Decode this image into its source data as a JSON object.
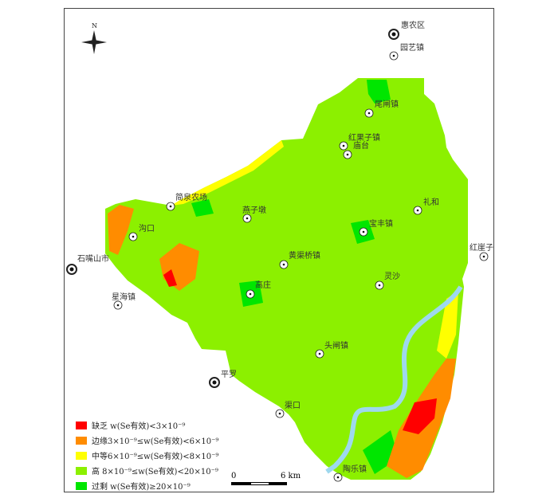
{
  "north_label": "N",
  "colors": {
    "deficient": "#ff0000",
    "marginal": "#ff8c00",
    "medium": "#ffff00",
    "high": "#8cf000",
    "excess": "#00e600",
    "river": "#9ed8ee"
  },
  "places": [
    {
      "name": "惠农区",
      "type": "district"
    },
    {
      "name": "园艺镇",
      "type": "town"
    },
    {
      "name": "尾闸镇",
      "type": "town"
    },
    {
      "name": "红果子镇",
      "type": "town"
    },
    {
      "name": "庙台",
      "type": "town"
    },
    {
      "name": "简泉农场",
      "type": "town"
    },
    {
      "name": "燕子墩",
      "type": "town"
    },
    {
      "name": "礼和",
      "type": "town"
    },
    {
      "name": "宝丰镇",
      "type": "town"
    },
    {
      "name": "沟口",
      "type": "town"
    },
    {
      "name": "石嘴山市",
      "type": "city"
    },
    {
      "name": "红崖子",
      "type": "town"
    },
    {
      "name": "黄渠桥镇",
      "type": "town"
    },
    {
      "name": "灵沙",
      "type": "town"
    },
    {
      "name": "高庄",
      "type": "town"
    },
    {
      "name": "星海镇",
      "type": "town"
    },
    {
      "name": "头闸镇",
      "type": "town"
    },
    {
      "name": "平罗",
      "type": "district"
    },
    {
      "name": "渠口",
      "type": "town"
    },
    {
      "name": "陶乐镇",
      "type": "town"
    }
  ],
  "legend": [
    {
      "label": "缺乏 w(Se有效)<3×10⁻⁹",
      "color": "#ff0000"
    },
    {
      "label": "边缘3×10⁻⁹≤w(Se有效)<6×10⁻⁹",
      "color": "#ff8c00"
    },
    {
      "label": "中等6×10⁻⁹≤w(Se有效)<8×10⁻⁹",
      "color": "#ffff00"
    },
    {
      "label": "高 8×10⁻⁹≤w(Se有效)<20×10⁻⁹",
      "color": "#8cf000"
    },
    {
      "label": "过剩 w(Se有效)≥20×10⁻⁹",
      "color": "#00e600"
    }
  ],
  "scale_bar": {
    "start": "0",
    "end": "6 km"
  }
}
